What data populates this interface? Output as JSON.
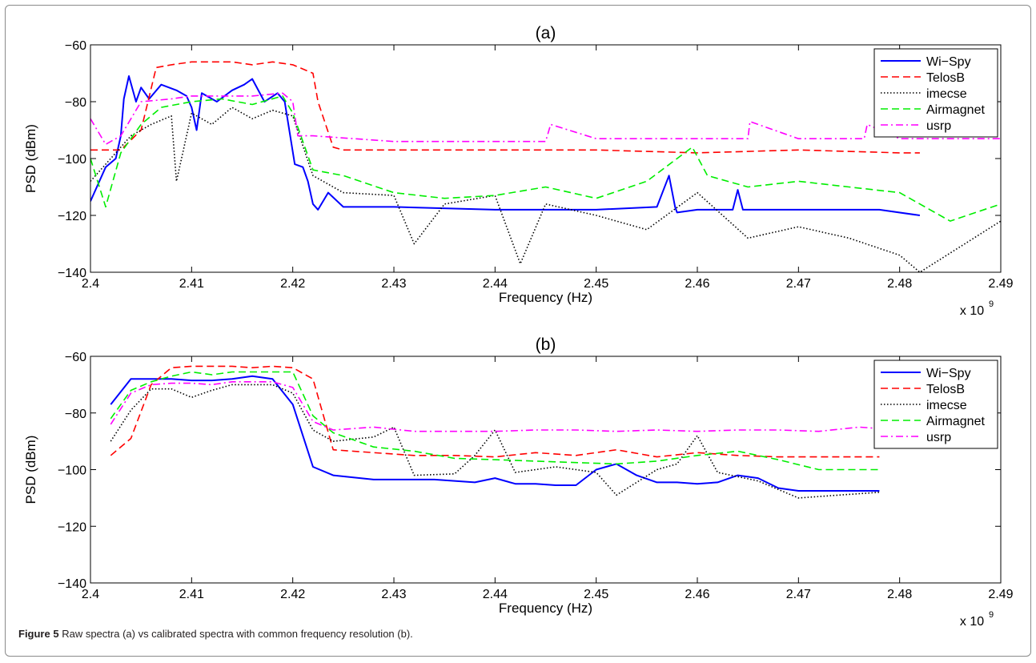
{
  "figure": {
    "caption_label": "Figure 5",
    "caption_text": "Raw spectra (a) vs calibrated spectra with common frequency resolution (b)."
  },
  "chart_data": [
    {
      "type": "line",
      "title": "(a)",
      "xlabel": "Frequency (Hz)",
      "ylabel": "PSD (dBm)",
      "x_multiplier": "x 10",
      "x_multiplier_exp": "9",
      "xlim": [
        2.4,
        2.49
      ],
      "ylim": [
        -140,
        -60
      ],
      "xticks": [
        2.4,
        2.41,
        2.42,
        2.43,
        2.44,
        2.45,
        2.46,
        2.47,
        2.48,
        2.49
      ],
      "yticks": [
        -60,
        -80,
        -100,
        -120,
        -140
      ],
      "xtick_labels": [
        "2.4",
        "2.41",
        "2.42",
        "2.43",
        "2.44",
        "2.45",
        "2.46",
        "2.47",
        "2.48",
        "2.49"
      ],
      "ytick_labels": [
        "−60",
        "−80",
        "−100",
        "−120",
        "−140"
      ],
      "grid": false,
      "legend_position": "top-right",
      "colors": {
        "Wi-Spy": "#0000ff",
        "TelosB": "#ff0000",
        "imecse": "#000000",
        "Airmagnet": "#00ee00",
        "usrp": "#ff00ff"
      },
      "series": [
        {
          "name": "Wi−Spy",
          "style": "solid",
          "color": "#0000ff",
          "x": [
            2.4,
            2.4015,
            2.4025,
            2.403,
            2.4033,
            2.4038,
            2.4045,
            2.405,
            2.4058,
            2.407,
            2.4085,
            2.4095,
            2.41,
            2.4105,
            2.411,
            2.4125,
            2.414,
            2.4152,
            2.416,
            2.4172,
            2.4185,
            2.4192,
            2.4202,
            2.421,
            2.4215,
            2.422,
            2.4225,
            2.4235,
            2.425,
            2.43,
            2.44,
            2.45,
            2.456,
            2.4572,
            2.4578,
            2.458,
            2.46,
            2.4635,
            2.464,
            2.4645,
            2.47,
            2.478,
            2.482
          ],
          "y": [
            -115,
            -103,
            -100,
            -92,
            -79,
            -71,
            -80,
            -75,
            -79,
            -74,
            -76,
            -78,
            -82,
            -90,
            -77,
            -80,
            -76,
            -74,
            -72,
            -80,
            -77,
            -80,
            -102,
            -103,
            -108,
            -116,
            -118,
            -112,
            -117,
            -117,
            -118,
            -118,
            -117,
            -106,
            -117,
            -119,
            -118,
            -118,
            -111,
            -118,
            -118,
            -118,
            -120
          ]
        },
        {
          "name": "TelosB",
          "style": "dashed",
          "color": "#ff0000",
          "x": [
            2.4,
            2.403,
            2.405,
            2.4065,
            2.408,
            2.41,
            2.412,
            2.414,
            2.416,
            2.418,
            2.42,
            2.422,
            2.4225,
            2.424,
            2.425,
            2.43,
            2.44,
            2.45,
            2.46,
            2.47,
            2.48,
            2.482
          ],
          "y": [
            -97,
            -97,
            -90,
            -68,
            -67,
            -66,
            -66,
            -66,
            -67,
            -66,
            -67,
            -70,
            -80,
            -96,
            -97,
            -97,
            -97,
            -97,
            -98,
            -97,
            -98,
            -98
          ]
        },
        {
          "name": "imecse",
          "style": "dotted",
          "color": "#000000",
          "x": [
            2.4,
            2.402,
            2.404,
            2.406,
            2.408,
            2.4085,
            2.41,
            2.412,
            2.414,
            2.416,
            2.418,
            2.42,
            2.422,
            2.425,
            2.43,
            2.432,
            2.435,
            2.44,
            2.4425,
            2.445,
            2.45,
            2.455,
            2.46,
            2.465,
            2.47,
            2.475,
            2.48,
            2.482,
            2.49
          ],
          "y": [
            -108,
            -100,
            -92,
            -88,
            -85,
            -108,
            -84,
            -88,
            -82,
            -86,
            -83,
            -85,
            -106,
            -112,
            -113,
            -130,
            -116,
            -113,
            -137,
            -116,
            -120,
            -125,
            -112,
            -128,
            -124,
            -128,
            -134,
            -140,
            -122
          ]
        },
        {
          "name": "Airmagnet",
          "style": "dashed",
          "color": "#00ee00",
          "x": [
            2.4,
            2.4015,
            2.403,
            2.405,
            2.407,
            2.41,
            2.413,
            2.416,
            2.419,
            2.42,
            2.422,
            2.425,
            2.43,
            2.435,
            2.44,
            2.445,
            2.45,
            2.455,
            2.458,
            2.4595,
            2.461,
            2.465,
            2.47,
            2.475,
            2.48,
            2.483,
            2.485,
            2.49
          ],
          "y": [
            -100,
            -117,
            -98,
            -88,
            -82,
            -80,
            -79,
            -81,
            -78,
            -84,
            -104,
            -106,
            -112,
            -114,
            -113,
            -110,
            -114,
            -108,
            -100,
            -96,
            -106,
            -110,
            -108,
            -110,
            -112,
            -118,
            -122,
            -116
          ]
        },
        {
          "name": "usrp",
          "style": "dashdot",
          "color": "#ff00ff",
          "x": [
            2.4,
            2.4015,
            2.403,
            2.405,
            2.408,
            2.41,
            2.413,
            2.416,
            2.419,
            2.42,
            2.4205,
            2.422,
            2.43,
            2.44,
            2.445,
            2.4455,
            2.45,
            2.46,
            2.465,
            2.4652,
            2.47,
            2.4765,
            2.4768,
            2.48,
            2.49
          ],
          "y": [
            -86,
            -95,
            -92,
            -80,
            -79,
            -78,
            -78,
            -78,
            -77,
            -80,
            -92,
            -92,
            -94,
            -94,
            -94,
            -88,
            -93,
            -93,
            -93,
            -87,
            -93,
            -93,
            -88,
            -93,
            -93
          ]
        }
      ]
    },
    {
      "type": "line",
      "title": "(b)",
      "xlabel": "Frequency (Hz)",
      "ylabel": "PSD (dBm)",
      "x_multiplier": "x 10",
      "x_multiplier_exp": "9",
      "xlim": [
        2.4,
        2.49
      ],
      "ylim": [
        -140,
        -60
      ],
      "xticks": [
        2.4,
        2.41,
        2.42,
        2.43,
        2.44,
        2.45,
        2.46,
        2.47,
        2.48,
        2.49
      ],
      "yticks": [
        -60,
        -80,
        -100,
        -120,
        -140
      ],
      "xtick_labels": [
        "2.4",
        "2.41",
        "2.42",
        "2.43",
        "2.44",
        "2.45",
        "2.46",
        "2.47",
        "2.48",
        "2.49"
      ],
      "ytick_labels": [
        "−60",
        "−80",
        "−100",
        "−120",
        "−140"
      ],
      "grid": false,
      "legend_position": "top-right",
      "series": [
        {
          "name": "Wi−Spy",
          "style": "solid",
          "color": "#0000ff",
          "x": [
            2.402,
            2.404,
            2.408,
            2.41,
            2.412,
            2.414,
            2.416,
            2.418,
            2.42,
            2.422,
            2.424,
            2.428,
            2.432,
            2.434,
            2.438,
            2.44,
            2.442,
            2.444,
            2.446,
            2.448,
            2.45,
            2.452,
            2.454,
            2.456,
            2.458,
            2.46,
            2.462,
            2.464,
            2.466,
            2.468,
            2.47,
            2.474,
            2.478
          ],
          "y": [
            -77,
            -68,
            -68,
            -68.5,
            -68.5,
            -68,
            -67,
            -68,
            -77,
            -99,
            -102,
            -103.5,
            -103.5,
            -103.5,
            -104.5,
            -103,
            -105,
            -105,
            -105.5,
            -105.5,
            -100,
            -98,
            -102,
            -104.5,
            -104.5,
            -105,
            -104.5,
            -102,
            -103,
            -106.5,
            -107.5,
            -107.5,
            -107.5
          ]
        },
        {
          "name": "TelosB",
          "style": "dashed",
          "color": "#ff0000",
          "x": [
            2.402,
            2.404,
            2.406,
            2.408,
            2.41,
            2.412,
            2.414,
            2.416,
            2.418,
            2.42,
            2.422,
            2.424,
            2.428,
            2.432,
            2.436,
            2.44,
            2.444,
            2.448,
            2.452,
            2.456,
            2.46,
            2.464,
            2.468,
            2.472,
            2.478
          ],
          "y": [
            -95,
            -89,
            -70,
            -64,
            -63.5,
            -63.5,
            -63.5,
            -64,
            -63.5,
            -64,
            -68,
            -93,
            -94,
            -95,
            -95,
            -95.5,
            -94,
            -95,
            -93,
            -95.5,
            -94,
            -95,
            -95.5,
            -95.5,
            -95.5
          ]
        },
        {
          "name": "imecse",
          "style": "dotted",
          "color": "#000000",
          "x": [
            2.402,
            2.404,
            2.406,
            2.408,
            2.41,
            2.412,
            2.414,
            2.416,
            2.418,
            2.42,
            2.422,
            2.424,
            2.428,
            2.43,
            2.432,
            2.436,
            2.438,
            2.44,
            2.442,
            2.446,
            2.45,
            2.452,
            2.456,
            2.458,
            2.46,
            2.462,
            2.466,
            2.47,
            2.474,
            2.478
          ],
          "y": [
            -90,
            -79,
            -71.5,
            -71.5,
            -74.5,
            -72,
            -70,
            -70,
            -70,
            -73,
            -86,
            -90,
            -88.5,
            -85,
            -102,
            -101.5,
            -95,
            -86,
            -101,
            -99,
            -101,
            -109,
            -100,
            -98,
            -88,
            -101,
            -104,
            -110,
            -109,
            -108
          ]
        },
        {
          "name": "Airmagnet",
          "style": "dashed",
          "color": "#00ee00",
          "x": [
            2.402,
            2.404,
            2.406,
            2.408,
            2.41,
            2.412,
            2.414,
            2.416,
            2.418,
            2.42,
            2.422,
            2.424,
            2.428,
            2.432,
            2.436,
            2.44,
            2.444,
            2.448,
            2.452,
            2.456,
            2.46,
            2.464,
            2.468,
            2.472,
            2.478
          ],
          "y": [
            -82,
            -72,
            -69,
            -67,
            -65.5,
            -66.5,
            -65.5,
            -65.5,
            -65.5,
            -65.5,
            -81,
            -87,
            -92,
            -93.5,
            -96,
            -96.5,
            -97,
            -97.5,
            -98,
            -97,
            -95,
            -93.5,
            -96.5,
            -100,
            -100
          ]
        },
        {
          "name": "usrp",
          "style": "dashdot",
          "color": "#ff00ff",
          "x": [
            2.402,
            2.404,
            2.406,
            2.408,
            2.41,
            2.412,
            2.414,
            2.416,
            2.418,
            2.42,
            2.422,
            2.424,
            2.428,
            2.432,
            2.436,
            2.44,
            2.444,
            2.448,
            2.452,
            2.456,
            2.46,
            2.464,
            2.468,
            2.472,
            2.476,
            2.478
          ],
          "y": [
            -84,
            -73,
            -70,
            -69.5,
            -69.5,
            -70,
            -69,
            -69,
            -69,
            -71,
            -83,
            -86,
            -85,
            -86.5,
            -86.5,
            -86.5,
            -86,
            -86,
            -86.5,
            -86,
            -86.5,
            -86,
            -86,
            -86.5,
            -85,
            -85.5
          ]
        }
      ]
    }
  ]
}
